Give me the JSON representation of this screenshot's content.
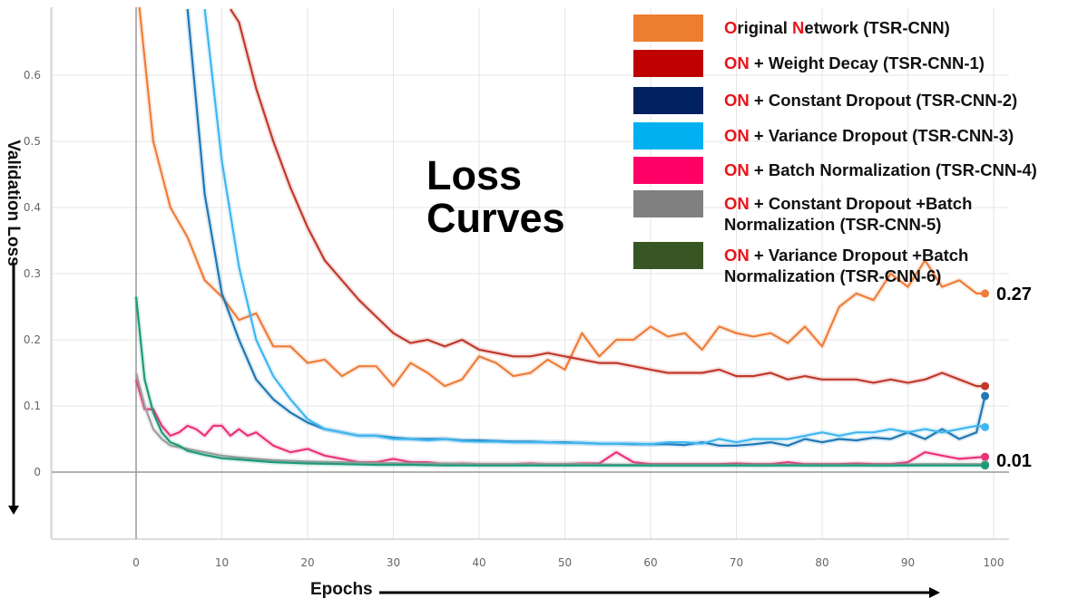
{
  "chart_data": {
    "type": "line",
    "title": "Loss Curves",
    "xlabel": "Epochs",
    "ylabel": "Validation Loss",
    "xlim": [
      -10,
      102
    ],
    "ylim": [
      -0.1,
      0.7
    ],
    "xticks": [
      0,
      10,
      20,
      30,
      40,
      50,
      60,
      70,
      80,
      90,
      100
    ],
    "yticks": [
      0,
      0.1,
      0.2,
      0.3,
      0.4,
      0.5,
      0.6
    ],
    "grid": true,
    "legend_position": "top-right",
    "end_labels": [
      "0.27",
      "0.01"
    ],
    "series": [
      {
        "name": "Original Network (TSR-CNN)",
        "color": "#ee7d3a",
        "x": [
          0,
          2,
          4,
          6,
          8,
          10,
          12,
          14,
          16,
          18,
          20,
          22,
          24,
          26,
          28,
          30,
          32,
          34,
          36,
          38,
          40,
          42,
          44,
          46,
          48,
          50,
          52,
          54,
          56,
          58,
          60,
          62,
          64,
          66,
          68,
          70,
          72,
          74,
          76,
          78,
          80,
          82,
          84,
          86,
          88,
          90,
          92,
          94,
          96,
          98,
          99
        ],
        "values": [
          0.75,
          0.5,
          0.4,
          0.355,
          0.29,
          0.265,
          0.23,
          0.24,
          0.19,
          0.19,
          0.165,
          0.17,
          0.145,
          0.16,
          0.16,
          0.13,
          0.165,
          0.15,
          0.13,
          0.14,
          0.175,
          0.165,
          0.145,
          0.15,
          0.17,
          0.155,
          0.21,
          0.175,
          0.2,
          0.2,
          0.22,
          0.205,
          0.21,
          0.185,
          0.22,
          0.21,
          0.205,
          0.21,
          0.195,
          0.22,
          0.19,
          0.25,
          0.27,
          0.26,
          0.3,
          0.28,
          0.32,
          0.28,
          0.29,
          0.27,
          0.27
        ]
      },
      {
        "name": "ON + Weight Decay (TSR-CNN-1)",
        "color": "#c0392b",
        "x": [
          11,
          12,
          14,
          16,
          18,
          20,
          22,
          24,
          26,
          28,
          30,
          32,
          34,
          36,
          38,
          40,
          42,
          44,
          46,
          48,
          50,
          52,
          54,
          56,
          58,
          60,
          62,
          64,
          66,
          68,
          70,
          72,
          74,
          76,
          78,
          80,
          82,
          84,
          86,
          88,
          90,
          92,
          94,
          96,
          98,
          99
        ],
        "values": [
          0.7,
          0.68,
          0.58,
          0.5,
          0.43,
          0.37,
          0.32,
          0.29,
          0.26,
          0.235,
          0.21,
          0.195,
          0.2,
          0.19,
          0.2,
          0.185,
          0.18,
          0.175,
          0.175,
          0.18,
          0.175,
          0.17,
          0.165,
          0.165,
          0.16,
          0.155,
          0.15,
          0.15,
          0.15,
          0.155,
          0.145,
          0.145,
          0.15,
          0.14,
          0.145,
          0.14,
          0.14,
          0.14,
          0.135,
          0.14,
          0.135,
          0.14,
          0.15,
          0.14,
          0.13,
          0.13
        ]
      },
      {
        "name": "ON + Constant Dropout (TSR-CNN-2)",
        "color": "#1f77b4",
        "x": [
          6,
          8,
          10,
          12,
          14,
          16,
          18,
          20,
          22,
          24,
          26,
          28,
          30,
          32,
          34,
          36,
          38,
          40,
          42,
          44,
          46,
          48,
          50,
          52,
          54,
          56,
          58,
          60,
          62,
          64,
          66,
          68,
          70,
          72,
          74,
          76,
          78,
          80,
          82,
          84,
          86,
          88,
          90,
          92,
          94,
          96,
          98,
          99
        ],
        "values": [
          0.7,
          0.42,
          0.27,
          0.2,
          0.14,
          0.11,
          0.09,
          0.075,
          0.065,
          0.06,
          0.055,
          0.055,
          0.052,
          0.05,
          0.05,
          0.05,
          0.048,
          0.048,
          0.047,
          0.046,
          0.046,
          0.045,
          0.045,
          0.044,
          0.043,
          0.043,
          0.042,
          0.042,
          0.042,
          0.041,
          0.045,
          0.04,
          0.04,
          0.042,
          0.045,
          0.04,
          0.05,
          0.045,
          0.05,
          0.048,
          0.052,
          0.05,
          0.06,
          0.05,
          0.065,
          0.05,
          0.06,
          0.115
        ]
      },
      {
        "name": "ON + Variance Dropout (TSR-CNN-3)",
        "color": "#3fb6f0",
        "x": [
          8,
          10,
          12,
          14,
          16,
          18,
          20,
          22,
          24,
          26,
          28,
          30,
          32,
          34,
          36,
          38,
          40,
          42,
          44,
          46,
          48,
          50,
          52,
          54,
          56,
          58,
          60,
          62,
          64,
          66,
          68,
          70,
          72,
          74,
          76,
          78,
          80,
          82,
          84,
          86,
          88,
          90,
          92,
          94,
          96,
          98,
          99
        ],
        "values": [
          0.7,
          0.47,
          0.31,
          0.2,
          0.145,
          0.11,
          0.08,
          0.065,
          0.06,
          0.055,
          0.055,
          0.05,
          0.05,
          0.048,
          0.05,
          0.047,
          0.046,
          0.046,
          0.045,
          0.045,
          0.045,
          0.044,
          0.044,
          0.043,
          0.043,
          0.043,
          0.042,
          0.045,
          0.045,
          0.043,
          0.05,
          0.045,
          0.05,
          0.05,
          0.05,
          0.055,
          0.06,
          0.055,
          0.06,
          0.06,
          0.065,
          0.06,
          0.065,
          0.06,
          0.065,
          0.07,
          0.068
        ]
      },
      {
        "name": "ON + Batch Normalization (TSR-CNN-4)",
        "color": "#e8337a",
        "x": [
          0,
          1,
          2,
          3,
          4,
          5,
          6,
          7,
          8,
          9,
          10,
          11,
          12,
          13,
          14,
          16,
          18,
          20,
          22,
          24,
          26,
          28,
          30,
          32,
          34,
          36,
          38,
          40,
          42,
          44,
          46,
          48,
          50,
          52,
          54,
          56,
          58,
          60,
          62,
          64,
          66,
          68,
          70,
          72,
          74,
          76,
          78,
          80,
          82,
          84,
          86,
          88,
          90,
          92,
          94,
          96,
          98,
          99
        ],
        "values": [
          0.14,
          0.095,
          0.095,
          0.07,
          0.055,
          0.06,
          0.07,
          0.065,
          0.055,
          0.07,
          0.07,
          0.055,
          0.065,
          0.055,
          0.06,
          0.04,
          0.03,
          0.035,
          0.025,
          0.02,
          0.015,
          0.015,
          0.02,
          0.015,
          0.015,
          0.012,
          0.013,
          0.012,
          0.012,
          0.012,
          0.013,
          0.012,
          0.012,
          0.013,
          0.013,
          0.03,
          0.015,
          0.012,
          0.012,
          0.012,
          0.012,
          0.012,
          0.013,
          0.012,
          0.012,
          0.015,
          0.012,
          0.012,
          0.012,
          0.013,
          0.012,
          0.012,
          0.015,
          0.03,
          0.025,
          0.02,
          0.022,
          0.023
        ]
      },
      {
        "name": "ON + Constant Dropout +Batch Normalization (TSR-CNN-5)",
        "color": "#9e9e9e",
        "x": [
          0,
          1,
          2,
          3,
          4,
          6,
          8,
          10,
          12,
          14,
          16,
          18,
          20,
          24,
          28,
          32,
          36,
          40,
          44,
          48,
          52,
          56,
          60,
          64,
          68,
          72,
          76,
          80,
          84,
          88,
          92,
          96,
          99
        ],
        "values": [
          0.15,
          0.1,
          0.065,
          0.05,
          0.04,
          0.035,
          0.03,
          0.025,
          0.022,
          0.02,
          0.018,
          0.017,
          0.016,
          0.015,
          0.014,
          0.013,
          0.013,
          0.012,
          0.012,
          0.012,
          0.012,
          0.011,
          0.011,
          0.011,
          0.011,
          0.011,
          0.011,
          0.011,
          0.011,
          0.011,
          0.012,
          0.012,
          0.012
        ]
      },
      {
        "name": "ON + Variance Dropout +Batch Normalization (TSR-CNN-6)",
        "color": "#1d9a7a",
        "x": [
          0,
          1,
          2,
          3,
          4,
          5,
          6,
          8,
          10,
          12,
          14,
          16,
          18,
          20,
          24,
          28,
          32,
          36,
          40,
          44,
          48,
          52,
          56,
          60,
          64,
          68,
          72,
          76,
          80,
          84,
          88,
          92,
          96,
          99
        ],
        "values": [
          0.265,
          0.14,
          0.09,
          0.06,
          0.045,
          0.04,
          0.032,
          0.026,
          0.021,
          0.019,
          0.017,
          0.015,
          0.014,
          0.013,
          0.012,
          0.011,
          0.011,
          0.01,
          0.01,
          0.01,
          0.01,
          0.01,
          0.01,
          0.01,
          0.01,
          0.01,
          0.01,
          0.01,
          0.01,
          0.01,
          0.01,
          0.01,
          0.01,
          0.01
        ]
      }
    ]
  },
  "legend": [
    {
      "red": "O",
      "mid": "riginal ",
      "red2": "N",
      "rest": "etwork  (TSR-CNN)",
      "color": "#ed7d31"
    },
    {
      "red": "ON",
      "mid": "",
      "red2": "",
      "rest": " + Weight Decay (TSR-CNN-1)",
      "color": "#c00000"
    },
    {
      "red": "ON",
      "mid": "",
      "red2": "",
      "rest": " + Constant Dropout (TSR-CNN-2)",
      "color": "#002060"
    },
    {
      "red": "ON",
      "mid": "",
      "red2": "",
      "rest": " + Variance Dropout  (TSR-CNN-3)",
      "color": "#00b0f0"
    },
    {
      "red": "ON",
      "mid": "",
      "red2": "",
      "rest": " + Batch Normalization (TSR-CNN-4)",
      "color": "#ff0066"
    },
    {
      "red": "ON",
      "mid": "",
      "red2": "",
      "rest": " + Constant Dropout +Batch",
      "line2": "Normalization (TSR-CNN-5)",
      "color": "#808080"
    },
    {
      "red": "ON",
      "mid": "",
      "red2": "",
      "rest": " + Variance Dropout +Batch",
      "line2": "Normalization (TSR-CNN-6)",
      "color": "#375623"
    }
  ]
}
